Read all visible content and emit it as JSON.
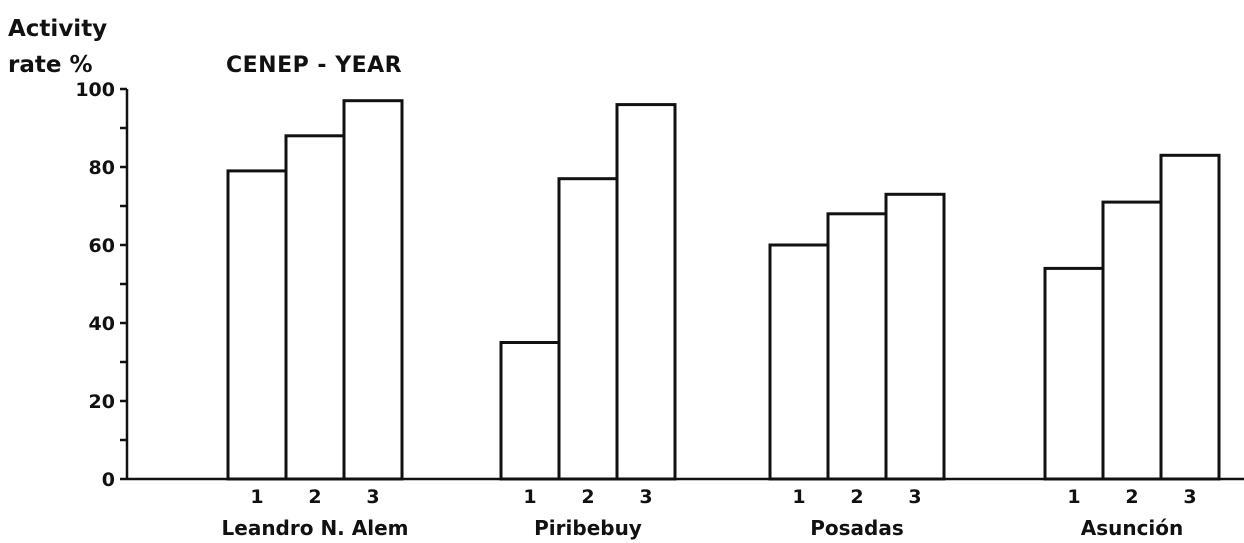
{
  "chart_data": {
    "type": "bar",
    "title": "CENEP - YEAR",
    "ylabel": [
      "Activity",
      "rate  %"
    ],
    "ylim": [
      0,
      100
    ],
    "yticks": [
      0,
      20,
      40,
      60,
      80,
      100
    ],
    "groups": [
      "Leandro N. Alem",
      "Piribebuy",
      "Posadas",
      "Asunción"
    ],
    "series": [
      {
        "name": "1",
        "values": [
          79,
          35,
          60,
          54
        ]
      },
      {
        "name": "2",
        "values": [
          88,
          77,
          68,
          71
        ]
      },
      {
        "name": "3",
        "values": [
          97,
          96,
          73,
          83
        ]
      }
    ]
  }
}
